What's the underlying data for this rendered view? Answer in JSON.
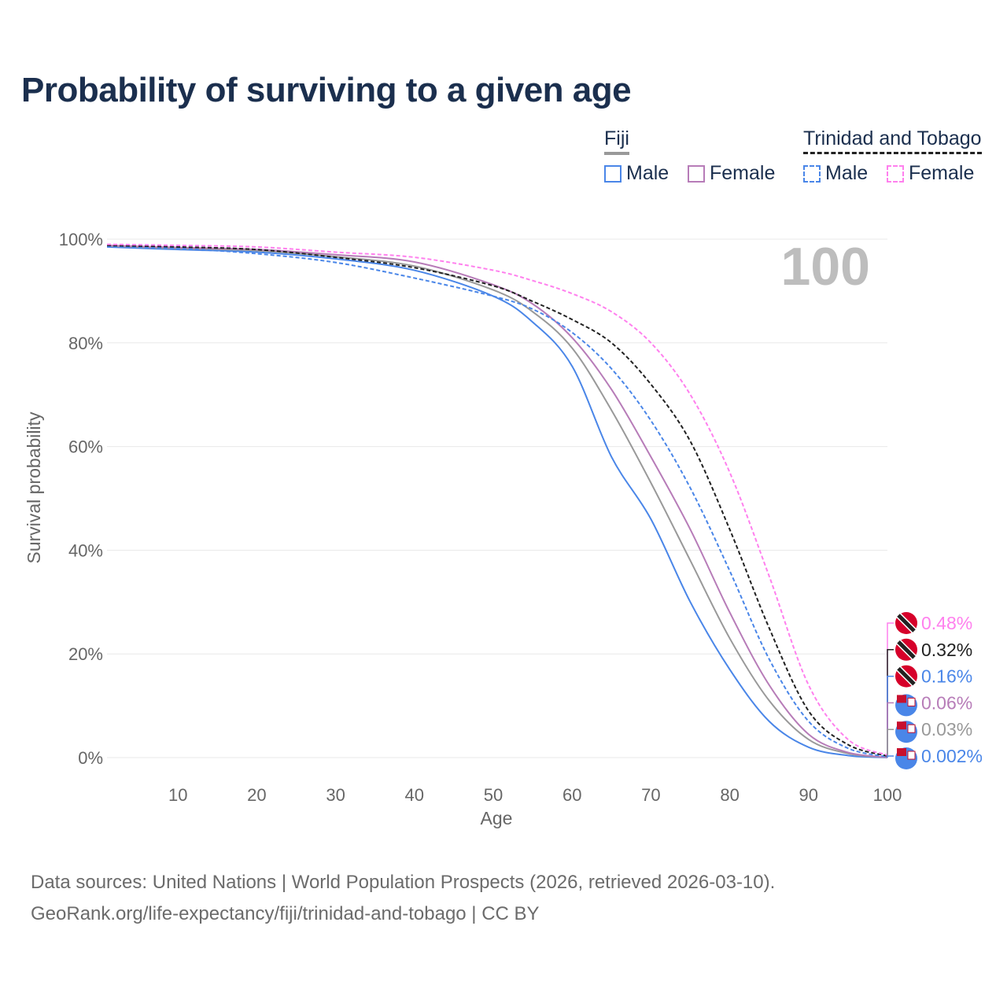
{
  "title": "Probability of surviving to a given age",
  "legend": {
    "groups": [
      {
        "name": "Fiji",
        "line_color": "#999999",
        "dash": false,
        "items": [
          {
            "label": "Male",
            "color": "#4a86e8"
          },
          {
            "label": "Female",
            "color": "#b77cb8"
          }
        ]
      },
      {
        "name": "Trinidad and Tobago",
        "line_color": "#222222",
        "dash": true,
        "items": [
          {
            "label": "Male",
            "color": "#4a86e8"
          },
          {
            "label": "Female",
            "color": "#ff80ee"
          }
        ]
      }
    ]
  },
  "age_indicator": "100",
  "sources": {
    "line1": "Data sources: United Nations | World Population Prospects (2026, retrieved 2026-03-10).",
    "line2": "GeoRank.org/life-expectancy/fiji/trinidad-and-tobago | CC BY"
  },
  "chart_data": {
    "type": "line",
    "title": "Probability of surviving to a given age",
    "xlabel": "Age",
    "ylabel": "Survival probability",
    "xlim": [
      1,
      100
    ],
    "ylim": [
      0,
      100
    ],
    "x_ticks": [
      10,
      20,
      30,
      40,
      50,
      60,
      70,
      80,
      90,
      100
    ],
    "x_tick_labels": [
      "10",
      "20",
      "30",
      "40",
      "50",
      "60",
      "70",
      "80",
      "90",
      "100"
    ],
    "y_ticks": [
      0,
      20,
      40,
      60,
      80,
      100
    ],
    "y_tick_labels": [
      "0%",
      "20%",
      "40%",
      "60%",
      "80%",
      "100%"
    ],
    "grid": true,
    "x": [
      1,
      10,
      20,
      30,
      40,
      50,
      55,
      60,
      65,
      70,
      75,
      80,
      85,
      90,
      95,
      100
    ],
    "series": [
      {
        "name": "Fiji Male",
        "color": "#4a86e8",
        "dash": false,
        "end_label": "0.002%",
        "flag": "fiji",
        "values": [
          98.5,
          98.0,
          97.5,
          96.2,
          94.0,
          89.0,
          84.0,
          75.5,
          58.0,
          46.0,
          30.0,
          17.0,
          7.0,
          2.0,
          0.4,
          0.002
        ]
      },
      {
        "name": "Fiji",
        "color": "#999999",
        "dash": false,
        "end_label": "0.03%",
        "flag": "fiji",
        "values": [
          98.7,
          98.2,
          97.8,
          96.6,
          94.8,
          90.2,
          86.0,
          79.0,
          67.0,
          53.0,
          38.0,
          23.0,
          11.0,
          3.5,
          0.8,
          0.03
        ]
      },
      {
        "name": "Fiji Female",
        "color": "#b77cb8",
        "dash": false,
        "end_label": "0.06%",
        "flag": "fiji",
        "values": [
          98.8,
          98.4,
          98.0,
          97.0,
          95.6,
          91.2,
          87.5,
          81.0,
          71.0,
          58.0,
          44.0,
          28.0,
          14.0,
          4.5,
          1.0,
          0.06
        ]
      },
      {
        "name": "Trinidad and Tobago Male",
        "color": "#4a86e8",
        "dash": true,
        "end_label": "0.16%",
        "flag": "tt",
        "values": [
          98.6,
          98.2,
          97.2,
          95.5,
          92.5,
          89.0,
          86.5,
          82.0,
          75.0,
          65.0,
          52.0,
          36.0,
          19.0,
          7.0,
          1.8,
          0.16
        ]
      },
      {
        "name": "Trinidad and Tobago",
        "color": "#222222",
        "dash": true,
        "end_label": "0.32%",
        "flag": "tt",
        "values": [
          98.8,
          98.5,
          98.0,
          96.5,
          94.5,
          91.0,
          88.0,
          84.5,
          80.0,
          72.0,
          61.0,
          44.0,
          25.0,
          9.0,
          2.5,
          0.32
        ]
      },
      {
        "name": "Trinidad and Tobago Female",
        "color": "#ff80ee",
        "dash": true,
        "end_label": "0.48%",
        "flag": "tt",
        "values": [
          99.0,
          98.8,
          98.5,
          97.5,
          96.5,
          94.0,
          92.0,
          89.5,
          86.0,
          80.0,
          70.0,
          55.0,
          35.0,
          14.0,
          3.5,
          0.48
        ]
      }
    ]
  }
}
